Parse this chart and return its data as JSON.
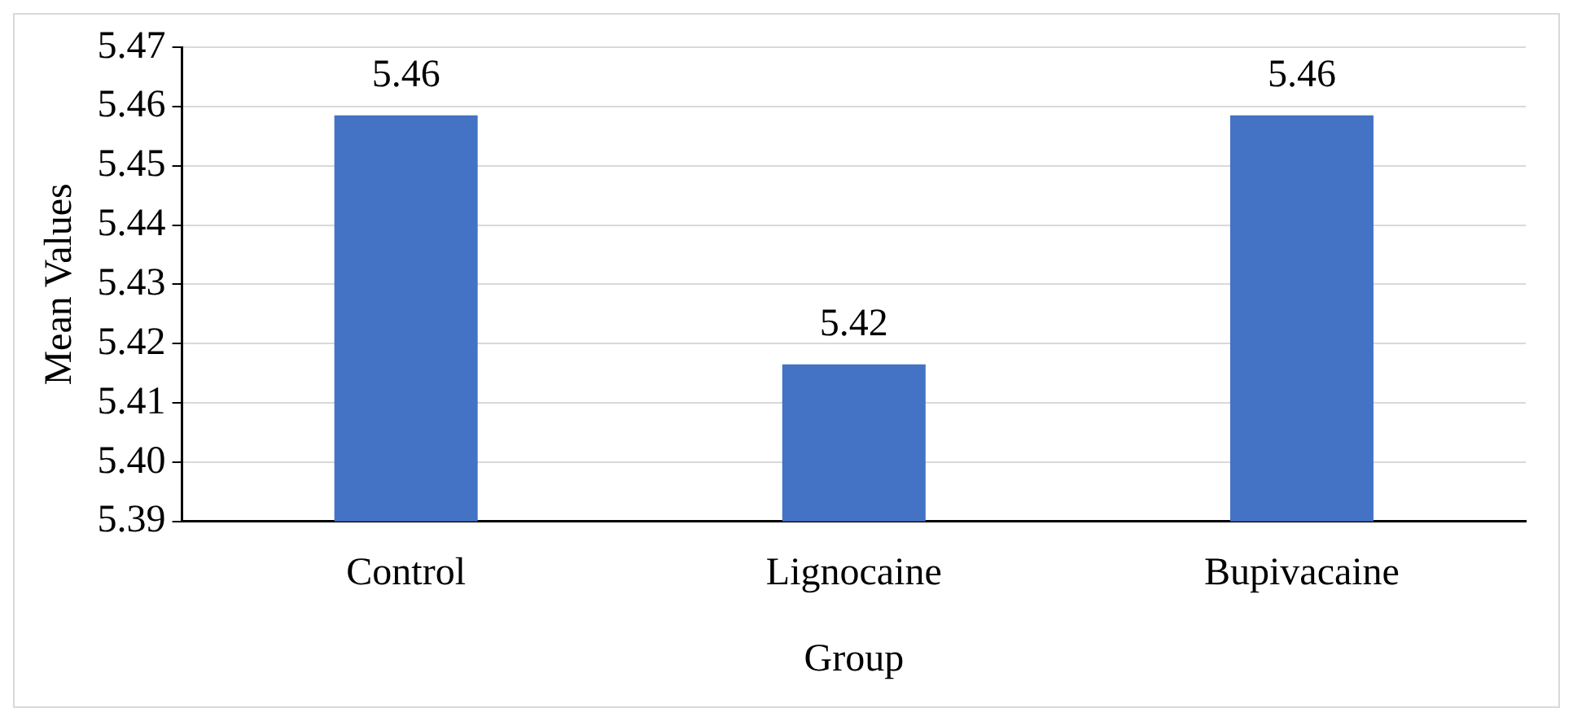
{
  "chart_data": {
    "type": "bar",
    "xlabel": "Group",
    "ylabel": "Mean Values",
    "categories": [
      "Control",
      "Lignocaine",
      "Bupivacaine"
    ],
    "values": [
      5.4585,
      5.4165,
      5.4585
    ],
    "value_labels": [
      "5.46",
      "5.42",
      "5.46"
    ],
    "color": "#4472c4",
    "ylim": [
      5.39,
      5.47
    ],
    "yticks": [
      {
        "value": 5.39,
        "label": "5.39"
      },
      {
        "value": 5.4,
        "label": "5.40"
      },
      {
        "value": 5.41,
        "label": "5.41"
      },
      {
        "value": 5.42,
        "label": "5.42"
      },
      {
        "value": 5.43,
        "label": "5.43"
      },
      {
        "value": 5.44,
        "label": "5.44"
      },
      {
        "value": 5.45,
        "label": "5.45"
      },
      {
        "value": 5.46,
        "label": "5.46"
      },
      {
        "value": 5.47,
        "label": "5.47"
      }
    ],
    "grid": "y"
  }
}
